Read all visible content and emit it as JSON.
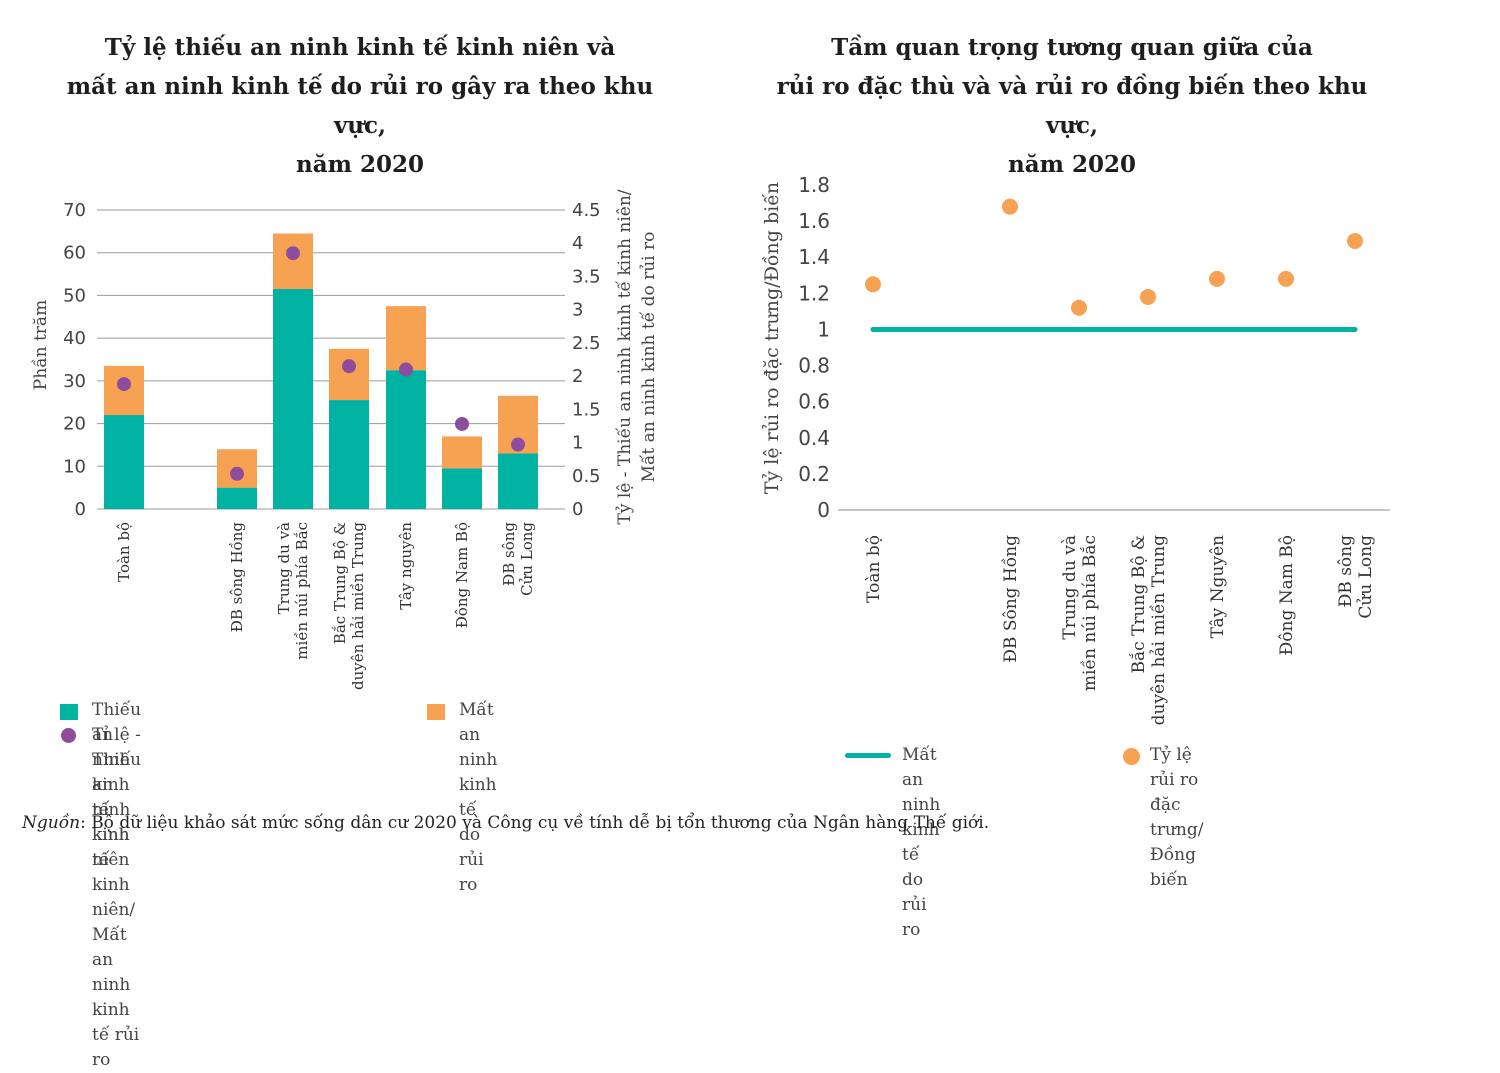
{
  "left_chart": {
    "title_lines": [
      "Tỷ lệ thiếu an ninh kinh tế kinh niên và",
      "mất an ninh kinh tế do rủi ro gây ra theo khu vực,",
      "năm 2020"
    ],
    "ylabel": "Phần trăm",
    "y2label_lines": [
      "Tỷ lệ - Thiếu an ninh kinh tế kinh niên/",
      "Mất an ninh kinh tế do rủi ro"
    ],
    "y_ticks": [
      "0",
      "10",
      "20",
      "30",
      "40",
      "50",
      "60",
      "70"
    ],
    "y2_ticks": [
      "0",
      "0.5",
      "1",
      "1.5",
      "2",
      "2.5",
      "3",
      "3.5",
      "4",
      "4.5"
    ],
    "legend": {
      "chronic": "Thiếu an ninh kinh tế kinh niên",
      "risk_lines": [
        "Mất an ninh kinh tế",
        "do rủi ro"
      ],
      "ratio_lines": [
        "Tỉ lệ - Thiếu an ninh kinh tế kinh niên/",
        "Mất an ninh kinh tế rủi ro"
      ]
    }
  },
  "right_chart": {
    "title_lines": [
      "Tầm quan trọng tương quan giữa của",
      "rủi ro đặc thù và và rủi ro đồng biến theo khu vực,",
      "năm 2020"
    ],
    "ylabel": "Tỷ lệ rủi ro đặc trưng/Đồng biến",
    "y_ticks": [
      "0",
      "0.2",
      "0.4",
      "0.6",
      "0.8",
      "1",
      "1.2",
      "1.4",
      "1.6",
      "1.8"
    ],
    "legend": {
      "line_lines": [
        "Mất an ninh kinh tế",
        "do rủi ro"
      ],
      "dot_lines": [
        "Tỷ lệ rủi ro đặc trưng/",
        "Đồng biến"
      ]
    }
  },
  "source": {
    "label": "Nguồn",
    "text": ": Bộ dữ liệu khảo sát mức sống dân cư 2020 và Công cụ về tính dễ bị tổn thương của Ngân hàng Thế giới."
  },
  "colors": {
    "teal": "#00b2a2",
    "orange": "#f7a253",
    "purple": "#8e4d9c",
    "grid": "#9a9a9a"
  },
  "chart_data": [
    {
      "type": "bar",
      "title": "Tỷ lệ thiếu an ninh kinh tế kinh niên và mất an ninh kinh tế do rủi ro gây ra theo khu vực, năm 2020",
      "stacked": true,
      "categories": [
        [
          "Toàn bộ"
        ],
        [
          "ĐB sông Hồng"
        ],
        [
          "Trung du và",
          "miền núi phía Bắc"
        ],
        [
          "Bắc Trung Bộ &",
          "duyên hải miền Trung"
        ],
        [
          "Tây nguyên"
        ],
        [
          "Đông Nam Bộ"
        ],
        [
          "ĐB sông",
          "Cửu Long"
        ]
      ],
      "series": [
        {
          "name": "Thiếu an ninh kinh tế kinh niên",
          "axis": "left",
          "values": [
            22,
            5,
            51.5,
            25.5,
            32.5,
            9.5,
            13
          ]
        },
        {
          "name": "Mất an ninh kinh tế do rủi ro",
          "axis": "left",
          "values": [
            11.5,
            9,
            13,
            12,
            15,
            7.5,
            13.5
          ]
        },
        {
          "name": "Tỉ lệ - Thiếu an ninh kinh tế kinh niên/Mất an ninh kinh tế rủi ro",
          "axis": "right",
          "type": "scatter",
          "values": [
            1.88,
            0.53,
            3.85,
            2.15,
            2.1,
            1.28,
            0.97
          ]
        }
      ],
      "ylabel": "Phần trăm",
      "y2label": "Tỷ lệ - Thiếu an ninh kinh tế kinh niên/Mất an ninh kinh tế do rủi ro",
      "ylim": [
        0,
        70
      ],
      "y2lim": [
        0,
        4.5
      ],
      "grid": true,
      "legend_position": "bottom"
    },
    {
      "type": "scatter",
      "title": "Tầm quan trọng tương quan giữa của rủi ro đặc thù và và rủi ro đồng biến theo khu vực, năm 2020",
      "categories": [
        [
          "Toàn bộ"
        ],
        [
          "ĐB Sông Hồng"
        ],
        [
          "Trung du và",
          "miền núi phía Bắc"
        ],
        [
          "Bắc Trung Bộ &",
          "duyên hải miền Trung"
        ],
        [
          "Tây Nguyên"
        ],
        [
          "Đông Nam Bộ"
        ],
        [
          "ĐB sông",
          "Cửu Long"
        ]
      ],
      "series": [
        {
          "name": "Tỷ lệ rủi ro đặc trưng/Đồng biến",
          "values": [
            1.25,
            1.68,
            1.12,
            1.18,
            1.28,
            1.28,
            1.49
          ]
        },
        {
          "name": "Mất an ninh kinh tế do rủi ro",
          "type": "line",
          "values": [
            1,
            1,
            1,
            1,
            1,
            1,
            1
          ]
        }
      ],
      "ylabel": "Tỷ lệ rủi ro đặc trưng/Đồng biến",
      "ylim": [
        0,
        1.8
      ],
      "grid": false,
      "legend_position": "bottom"
    }
  ]
}
